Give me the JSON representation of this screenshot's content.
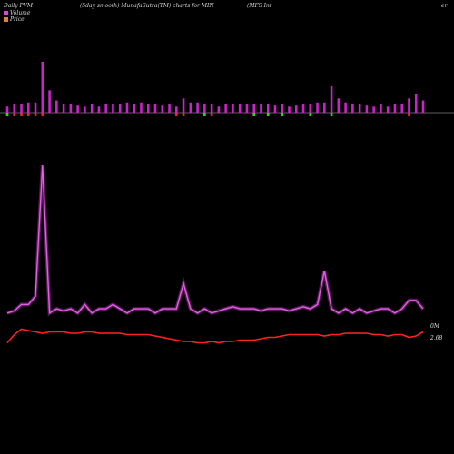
{
  "header": {
    "left": "Daily PVM",
    "mid": "(5day smooth) MunafaSutra(TM) charts for MIN",
    "right": "(MFS Int",
    "far_right": "er"
  },
  "legend": [
    {
      "label": "Volume",
      "color": "#e040e0"
    },
    {
      "label": "Price",
      "color": "#e08040"
    }
  ],
  "colors": {
    "volume_up": "#cc22cc",
    "volume_down_red": "#ff2222",
    "volume_down_green": "#22dd22",
    "volume_line": "#cc33cc",
    "price_line": "#ff2222"
  },
  "chart_data": {
    "type": "line",
    "title": "(5day smooth) MunafaSutra(TM) charts for MIN",
    "volume_bars": [
      6,
      8,
      8,
      10,
      10,
      50,
      22,
      12,
      8,
      8,
      7,
      6,
      8,
      6,
      8,
      8,
      8,
      10,
      8,
      10,
      8,
      8,
      7,
      8,
      6,
      14,
      10,
      10,
      9,
      8,
      6,
      8,
      8,
      9,
      9,
      9,
      8,
      8,
      7,
      8,
      6,
      7,
      8,
      8,
      10,
      10,
      26,
      14,
      10,
      9,
      8,
      7,
      6,
      8,
      6,
      8,
      9,
      14,
      18,
      12
    ],
    "bar_color_flags": [
      "g",
      "r",
      "r",
      "r",
      "r",
      "r",
      "p",
      "p",
      "p",
      "p",
      "p",
      "p",
      "p",
      "p",
      "p",
      "p",
      "p",
      "p",
      "p",
      "p",
      "p",
      "p",
      "p",
      "p",
      "r",
      "r",
      "p",
      "p",
      "g",
      "r",
      "p",
      "p",
      "p",
      "p",
      "p",
      "g",
      "p",
      "g",
      "p",
      "g",
      "p",
      "p",
      "p",
      "g",
      "p",
      "p",
      "g",
      "p",
      "p",
      "p",
      "p",
      "p",
      "p",
      "p",
      "p",
      "p",
      "p",
      "r",
      "p",
      "p"
    ],
    "series": [
      {
        "name": "Volume",
        "values": [
          5,
          5.5,
          7,
          7,
          9,
          40,
          5,
          6,
          5.5,
          6,
          5,
          7,
          5,
          6,
          6,
          7,
          6,
          5,
          6,
          6,
          6,
          5,
          6,
          6,
          6,
          12,
          6,
          5,
          6,
          5,
          5.5,
          6,
          6.5,
          6,
          6,
          6,
          5.5,
          6,
          6,
          6,
          5.5,
          6,
          6.5,
          6,
          7,
          15,
          6,
          5,
          6,
          5,
          6,
          5,
          5.5,
          6,
          6,
          5,
          6,
          8,
          8,
          6
        ]
      },
      {
        "name": "Price",
        "values": [
          2.6,
          2.66,
          2.7,
          2.69,
          2.68,
          2.67,
          2.68,
          2.68,
          2.68,
          2.67,
          2.67,
          2.68,
          2.68,
          2.67,
          2.67,
          2.67,
          2.67,
          2.66,
          2.66,
          2.66,
          2.66,
          2.65,
          2.64,
          2.63,
          2.62,
          2.61,
          2.61,
          2.6,
          2.6,
          2.61,
          2.6,
          2.61,
          2.61,
          2.62,
          2.62,
          2.62,
          2.63,
          2.64,
          2.64,
          2.65,
          2.66,
          2.66,
          2.66,
          2.66,
          2.66,
          2.65,
          2.66,
          2.66,
          2.67,
          2.67,
          2.67,
          2.67,
          2.66,
          2.66,
          2.65,
          2.66,
          2.66,
          2.64,
          2.65,
          2.68
        ]
      }
    ],
    "right_labels": {
      "volume": "0M",
      "price": "2.68"
    }
  }
}
